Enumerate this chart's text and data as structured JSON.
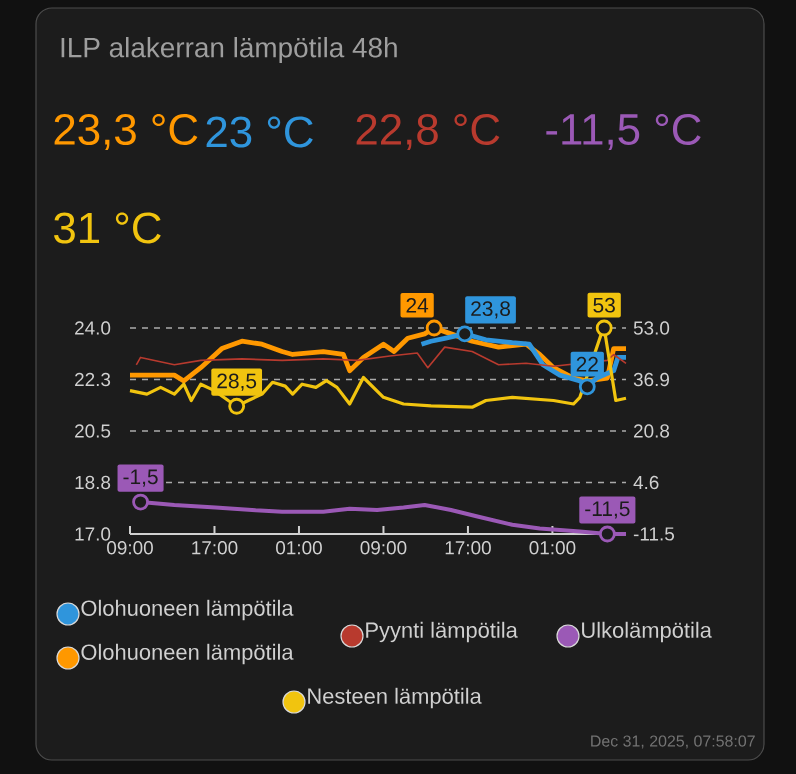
{
  "chart_data": {
    "type": "line",
    "title": "ILP alakerran lämpötila 48h",
    "annotations": [
      "23,3 °C",
      "23 °C",
      "22,8 °C",
      "-11,5 °C",
      "31 °C",
      "Dec 31, 2025, 07:58:07"
    ],
    "series": [
      {
        "name": "Olohuoneen lämpötila",
        "color": "#ff9800",
        "x": [
          "2025-12-29T09:00",
          "2025-12-29T13:12",
          "2025-12-29T14:06",
          "2025-12-29T15:42",
          "2025-12-29T17:42",
          "2025-12-29T19:36",
          "2025-12-29T21:30",
          "2025-12-29T23:24",
          "2025-12-30T00:24",
          "2025-12-30T03:18",
          "2025-12-30T05:12",
          "2025-12-30T05:48",
          "2025-12-30T07:06",
          "2025-12-30T09:00",
          "2025-12-30T10:00",
          "2025-12-30T11:18",
          "2025-12-30T12:54",
          "2025-12-30T13:48",
          "2025-12-30T15:24",
          "2025-12-30T17:24",
          "2025-12-30T19:54",
          "2025-12-30T22:30",
          "2025-12-30T23:48",
          "2025-12-31T01:06",
          "2025-12-31T03:00",
          "2025-12-31T04:18",
          "2025-12-31T06:12",
          "2025-12-31T06:48",
          "2025-12-31T07:58"
        ],
        "values": [
          22.4,
          22.4,
          22.2,
          22.65,
          23.3,
          23.55,
          23.45,
          23.2,
          23.1,
          23.2,
          23.1,
          22.55,
          23,
          23.45,
          23.2,
          23.65,
          23.8,
          24,
          23.8,
          23.55,
          23.35,
          23.45,
          23.1,
          22.65,
          22.3,
          22.2,
          22.3,
          23.3,
          23.3
        ],
        "value_labels": [
          null,
          null,
          null,
          null,
          null,
          null,
          null,
          null,
          null,
          null,
          null,
          null,
          null,
          null,
          null,
          null,
          null,
          "24",
          null,
          null,
          null,
          null,
          null,
          null,
          null,
          null,
          null,
          null,
          null
        ]
      },
      {
        "name": "Olohuoneen lämpötila",
        "color": "#2f95dc",
        "x": [
          "2025-12-30T12:36",
          "2025-12-30T13:30",
          "2025-12-30T14:48",
          "2025-12-30T16:42",
          "2025-12-30T18:42",
          "2025-12-30T21:12",
          "2025-12-30T22:48",
          "2025-12-31T00:06",
          "2025-12-31T01:42",
          "2025-12-31T03:36",
          "2025-12-31T04:18",
          "2025-12-31T05:12",
          "2025-12-31T06:48",
          "2025-12-31T07:12",
          "2025-12-31T07:58"
        ],
        "values": [
          23.45,
          23.55,
          23.65,
          23.8,
          23.6,
          23.5,
          23.45,
          22.75,
          22.4,
          22.2,
          22,
          22.3,
          22.55,
          23,
          23
        ],
        "value_labels": [
          null,
          null,
          null,
          "23,8",
          null,
          null,
          null,
          null,
          null,
          null,
          "22",
          null,
          null,
          null,
          null
        ]
      },
      {
        "name": "Pyynti lämpötila",
        "color": "#b83a2e",
        "x": [
          "2025-12-29T09:36",
          "2025-12-29T10:00",
          "2025-12-29T13:12",
          "2025-12-29T15:42",
          "2025-12-29T19:36",
          "2025-12-29T23:24",
          "2025-12-30T03:18",
          "2025-12-30T06:30",
          "2025-12-30T09:36",
          "2025-12-30T12:12",
          "2025-12-30T13:12",
          "2025-12-30T14:48",
          "2025-12-30T17:24",
          "2025-12-30T19:54",
          "2025-12-30T22:30",
          "2025-12-31T01:06",
          "2025-12-31T03:36",
          "2025-12-31T06:12",
          "2025-12-31T06:48",
          "2025-12-31T07:58"
        ],
        "values": [
          22.75,
          23,
          22.75,
          22.9,
          22.95,
          22.9,
          22.95,
          22.9,
          23.05,
          23.15,
          22.65,
          23.35,
          23.2,
          22.75,
          22.8,
          22.7,
          null,
          22.9,
          23.1,
          22.8
        ]
      },
      {
        "name": "Ulkolämpötila",
        "color": "#9b59b6",
        "axis": "y2",
        "x": [
          "2025-12-29T10:00",
          "2025-12-29T13:12",
          "2025-12-29T17:06",
          "2025-12-29T20:54",
          "2025-12-29T23:24",
          "2025-12-30T03:18",
          "2025-12-30T05:48",
          "2025-12-30T08:24",
          "2025-12-30T10:54",
          "2025-12-30T12:54",
          "2025-12-30T15:24",
          "2025-12-30T18:00",
          "2025-12-30T21:12",
          "2025-12-30T23:48",
          "2025-12-31T03:36",
          "2025-12-31T06:12",
          "2025-12-31T07:58"
        ],
        "values": [
          -1.5,
          -2.4,
          -3.2,
          -4.1,
          -4.5,
          -4.5,
          -3.6,
          -4,
          -3.2,
          -2.4,
          -4,
          -6.1,
          -8.6,
          -9.8,
          -10.7,
          -11.5,
          -11.5
        ],
        "value_labels": [
          "-1,5",
          null,
          null,
          null,
          null,
          null,
          null,
          null,
          null,
          null,
          null,
          null,
          null,
          null,
          null,
          "-11,5",
          null
        ]
      },
      {
        "name": "Nesteen lämpötila",
        "color": "#f1c40f",
        "axis": "y2",
        "x": [
          "2025-12-29T09:00",
          "2025-12-29T10:36",
          "2025-12-29T11:54",
          "2025-12-29T13:12",
          "2025-12-29T14:06",
          "2025-12-29T14:48",
          "2025-12-29T15:42",
          "2025-12-29T17:00",
          "2025-12-29T18:18",
          "2025-12-29T19:06",
          "2025-12-29T20:12",
          "2025-12-29T21:30",
          "2025-12-29T22:30",
          "2025-12-29T23:42",
          "2025-12-30T00:24",
          "2025-12-30T01:18",
          "2025-12-30T02:36",
          "2025-12-30T03:36",
          "2025-12-30T04:36",
          "2025-12-30T05:48",
          "2025-12-30T07:06",
          "2025-12-30T09:00",
          "2025-12-30T10:54",
          "2025-12-30T13:30",
          "2025-12-30T17:24",
          "2025-12-30T18:42",
          "2025-12-30T21:12",
          "2025-12-31T01:06",
          "2025-12-31T03:00",
          "2025-12-31T03:36",
          "2025-12-31T05:36",
          "2025-12-31T05:54",
          "2025-12-31T07:00",
          "2025-12-31T07:58"
        ],
        "values": [
          33.4,
          32.3,
          34.4,
          32.3,
          35.4,
          30.3,
          35.4,
          33.4,
          30.3,
          28.5,
          30.3,
          32.3,
          36,
          34.8,
          32.3,
          35.4,
          34.4,
          36.5,
          34.4,
          29.2,
          37.5,
          31.3,
          29.2,
          28.6,
          28.2,
          30.3,
          31.3,
          30.3,
          29.2,
          31.3,
          50.9,
          53,
          30.3,
          31
        ],
        "value_labels": [
          null,
          null,
          null,
          null,
          null,
          null,
          null,
          null,
          null,
          "28,5",
          null,
          null,
          null,
          null,
          null,
          null,
          null,
          null,
          null,
          null,
          null,
          null,
          null,
          null,
          null,
          null,
          null,
          null,
          null,
          null,
          null,
          "53",
          null,
          null
        ]
      }
    ],
    "xlim": [
      "2025-12-29T09:00",
      "2025-12-31T07:58"
    ],
    "xticks": [
      {
        "value": "2025-12-29T09:00",
        "label": "09:00"
      },
      {
        "value": "2025-12-29T17:00",
        "label": "17:00"
      },
      {
        "value": "2025-12-30T01:00",
        "label": "01:00"
      },
      {
        "value": "2025-12-30T09:00",
        "label": "09:00"
      },
      {
        "value": "2025-12-30T17:00",
        "label": "17:00"
      },
      {
        "value": "2025-12-31T01:00",
        "label": "01:00"
      }
    ],
    "ylim": [
      17,
      24
    ],
    "yticks": [
      {
        "value": 17,
        "label": "17.0"
      },
      {
        "value": 18.75,
        "label": "18.8"
      },
      {
        "value": 20.5,
        "label": "20.5"
      },
      {
        "value": 22.25,
        "label": "22.3"
      },
      {
        "value": 24,
        "label": "24.0"
      }
    ],
    "y2lim": [
      -11.5,
      53
    ],
    "y2ticks": [
      {
        "value": -11.5,
        "label": "-11.5"
      },
      {
        "value": 4.625,
        "label": "4.6"
      },
      {
        "value": 20.75,
        "label": "20.8"
      },
      {
        "value": 36.875,
        "label": "36.9"
      },
      {
        "value": 53,
        "label": "53.0"
      }
    ],
    "grid": "y",
    "legend": "bottom",
    "marker": "none",
    "line_style": "solid"
  }
}
